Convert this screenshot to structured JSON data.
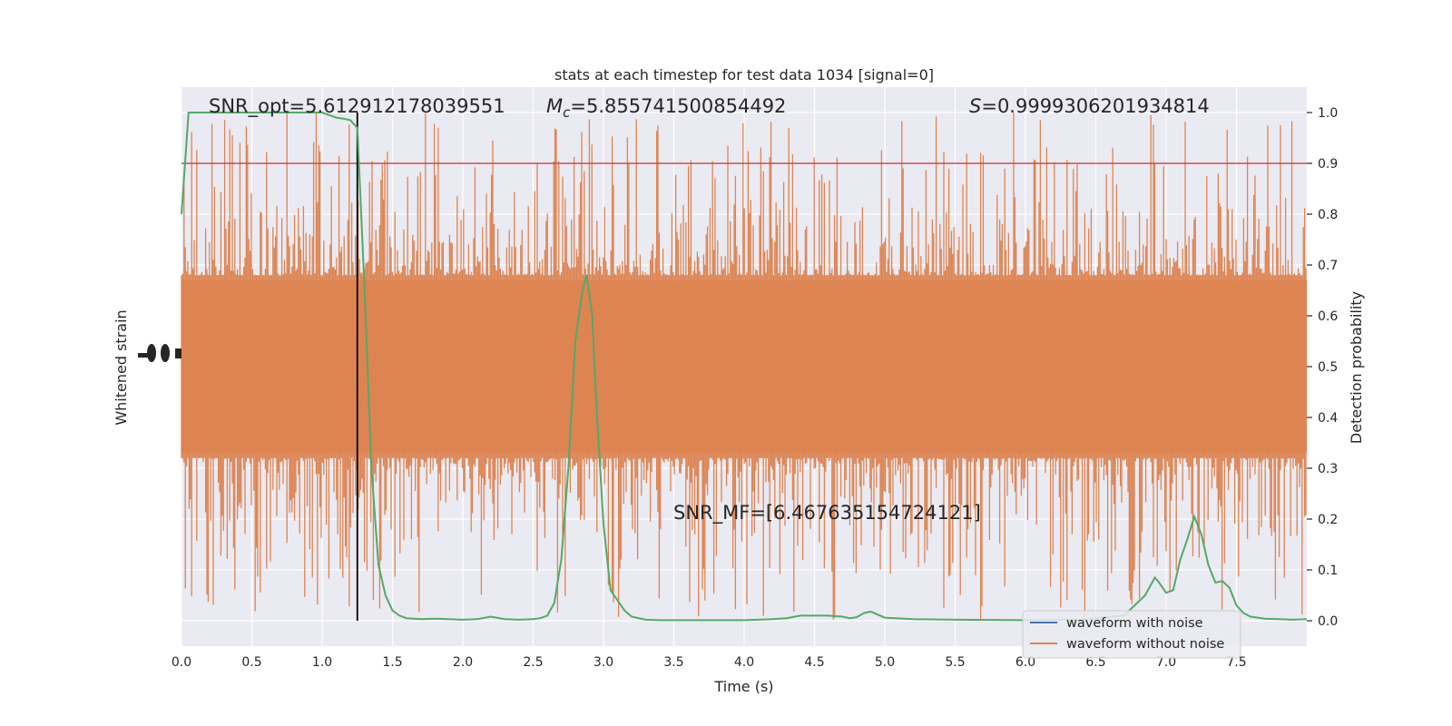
{
  "chart_data": {
    "type": "line",
    "title": "stats at each timestep for test data 1034 [signal=0]",
    "xlabel": "Time (s)",
    "ylabel_left": "Whitened strain",
    "ylabel_right": "Detection probability",
    "xlim": [
      0,
      8
    ],
    "ylim_right": [
      -0.05,
      1.05
    ],
    "x_ticks": [
      0.0,
      0.5,
      1.0,
      1.5,
      2.0,
      2.5,
      3.0,
      3.5,
      4.0,
      4.5,
      5.0,
      5.5,
      6.0,
      6.5,
      7.0,
      7.5
    ],
    "x_tick_labels": [
      "0.0",
      "0.5",
      "1.0",
      "1.5",
      "2.0",
      "2.5",
      "3.0",
      "3.5",
      "4.0",
      "4.5",
      "5.0",
      "5.5",
      "6.0",
      "6.5",
      "7.0",
      "7.5"
    ],
    "y_ticks_right": [
      0.0,
      0.1,
      0.2,
      0.3,
      0.4,
      0.5,
      0.6,
      0.7,
      0.8,
      0.9,
      1.0
    ],
    "y_tick_labels_right": [
      "0.0",
      "0.1",
      "0.2",
      "0.3",
      "0.4",
      "0.5",
      "0.6",
      "0.7",
      "0.8",
      "0.9",
      "1.0"
    ],
    "grid": true,
    "legend_position": "bottom-right",
    "annotations": {
      "snr_opt": "SNR_opt=5.612912178039551",
      "mc_symbol": "M",
      "mc_sub": "c",
      "mc_value": "=5.855741500854492",
      "s_symbol": "S",
      "s_value": "=0.9999306201934814",
      "snr_mf": "SNR_MF=[6.467635154724121]"
    },
    "threshold": {
      "y": 0.9,
      "color": "#c44e52"
    },
    "vline": {
      "x": 1.25,
      "color": "#000000"
    },
    "series": [
      {
        "name": "waveform with noise",
        "color": "#4c72b0",
        "axis": "left",
        "band_center": 0.5,
        "band_core": [
          0.32,
          0.68
        ],
        "band_extreme": [
          0.0,
          1.0
        ]
      },
      {
        "name": "waveform without noise",
        "color": "#dd8452",
        "axis": "left",
        "band_center": 0.5,
        "band_core": [
          0.32,
          0.68
        ],
        "band_extreme": [
          0.0,
          1.0
        ]
      },
      {
        "name": "",
        "color": "#55a868",
        "axis": "right",
        "x": [
          0.0,
          0.05,
          0.1,
          0.15,
          0.2,
          0.3,
          0.4,
          0.5,
          0.6,
          0.7,
          0.8,
          0.9,
          1.0,
          1.05,
          1.1,
          1.15,
          1.2,
          1.25,
          1.3,
          1.35,
          1.4,
          1.45,
          1.5,
          1.55,
          1.6,
          1.7,
          1.8,
          1.9,
          2.0,
          2.1,
          2.2,
          2.3,
          2.4,
          2.5,
          2.55,
          2.6,
          2.65,
          2.7,
          2.75,
          2.8,
          2.85,
          2.88,
          2.92,
          2.95,
          3.0,
          3.05,
          3.1,
          3.15,
          3.2,
          3.3,
          3.4,
          3.6,
          3.8,
          4.0,
          4.1,
          4.2,
          4.3,
          4.4,
          4.5,
          4.6,
          4.7,
          4.75,
          4.8,
          4.85,
          4.9,
          4.95,
          5.0,
          5.2,
          5.5,
          6.0,
          6.4,
          6.7,
          6.85,
          6.92,
          6.95,
          7.0,
          7.05,
          7.1,
          7.15,
          7.2,
          7.25,
          7.3,
          7.35,
          7.4,
          7.45,
          7.5,
          7.55,
          7.6,
          7.7,
          7.8,
          7.9,
          8.0
        ],
        "values": [
          0.8,
          1.0,
          1.0,
          1.0,
          1.0,
          1.0,
          1.0,
          1.0,
          1.0,
          1.0,
          1.0,
          1.0,
          1.0,
          0.995,
          0.99,
          0.988,
          0.985,
          0.97,
          0.66,
          0.3,
          0.11,
          0.05,
          0.02,
          0.01,
          0.005,
          0.003,
          0.004,
          0.003,
          0.002,
          0.003,
          0.008,
          0.003,
          0.002,
          0.003,
          0.005,
          0.01,
          0.035,
          0.12,
          0.3,
          0.55,
          0.65,
          0.68,
          0.6,
          0.42,
          0.19,
          0.06,
          0.04,
          0.02,
          0.008,
          0.002,
          0.001,
          0.001,
          0.001,
          0.001,
          0.002,
          0.003,
          0.005,
          0.01,
          0.01,
          0.01,
          0.008,
          0.005,
          0.007,
          0.015,
          0.018,
          0.012,
          0.006,
          0.003,
          0.002,
          0.001,
          0.002,
          0.01,
          0.05,
          0.085,
          0.075,
          0.055,
          0.06,
          0.12,
          0.16,
          0.205,
          0.17,
          0.11,
          0.075,
          0.078,
          0.065,
          0.03,
          0.015,
          0.008,
          0.004,
          0.003,
          0.002,
          0.003
        ]
      }
    ]
  }
}
